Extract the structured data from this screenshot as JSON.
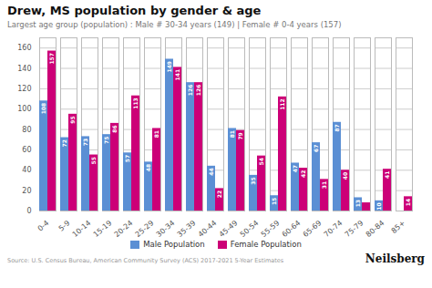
{
  "chart_data": {
    "type": "bar",
    "title": "Drew, MS population by gender & age",
    "subtitle": "Largest age group (population) : Male # 30-34 years (149) | Female # 0-4 years (157)",
    "categories": [
      "0-4",
      "5-9",
      "10-14",
      "15-19",
      "20-24",
      "25-29",
      "30-34",
      "35-39",
      "40-44",
      "45-49",
      "50-54",
      "55-59",
      "60-64",
      "65-69",
      "70-74",
      "75-79",
      "80-84",
      "85+"
    ],
    "series": [
      {
        "name": "Male Population",
        "color": "#5B8FD4",
        "values": [
          108,
          72,
          73,
          75,
          57,
          48,
          149,
          126,
          44,
          81,
          35,
          15,
          47,
          67,
          87,
          13,
          10,
          0
        ],
        "value_labels": [
          "108",
          "72",
          "73",
          "75",
          "57",
          "48",
          "149",
          "126",
          "44",
          "81",
          "35",
          "15",
          "47",
          "67",
          "87",
          "13",
          "10",
          null
        ]
      },
      {
        "name": "Female Population",
        "color": "#CC0077",
        "values": [
          157,
          95,
          55,
          86,
          113,
          81,
          141,
          126,
          22,
          79,
          54,
          112,
          42,
          31,
          40,
          8,
          41,
          14
        ],
        "value_labels": [
          "157",
          "95",
          "55",
          "86",
          "113",
          "81",
          "141",
          "126",
          "22",
          "79",
          "54",
          "112",
          "42",
          "31",
          "40",
          null,
          "41",
          "14"
        ]
      }
    ],
    "ylim": [
      0,
      170
    ],
    "yticks": [
      0,
      20,
      40,
      60,
      80,
      100,
      120,
      140,
      160
    ],
    "grid": true,
    "legend": "bottom",
    "data_labels": true,
    "annotations": [
      "Source: U.S. Census Bureau, American Community Survey (ACS) 2017-2021 5-Year Estimates",
      "Neilsberg"
    ]
  }
}
